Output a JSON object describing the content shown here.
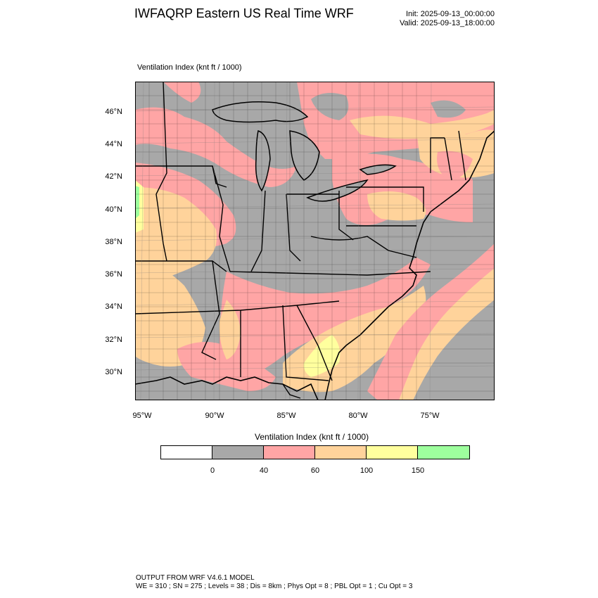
{
  "header": {
    "title": "IWFAQRP Eastern US Real Time WRF",
    "init": "Init: 2025-09-13_00:00:00",
    "valid": "Valid: 2025-09-13_18:00:00"
  },
  "map": {
    "field_label": "Ventilation Index   (knt ft / 1000)",
    "lat_labels": [
      "46°N",
      "44°N",
      "42°N",
      "40°N",
      "38°N",
      "36°N",
      "34°N",
      "32°N",
      "30°N"
    ],
    "lon_labels": [
      "95°W",
      "90°W",
      "85°W",
      "80°W",
      "75°W"
    ],
    "colors": {
      "lt0": "#ffffff",
      "v0_40": "#a8a8a8",
      "v40_60": "#ffa5a5",
      "v60_100": "#ffd39b",
      "v100_150": "#ffff9e",
      "v150p": "#9eff9e",
      "ocean": "#a8a8a8"
    }
  },
  "colorbar": {
    "title": "Ventilation Index   (knt ft / 1000)",
    "colors": [
      "#ffffff",
      "#a8a8a8",
      "#ffa5a5",
      "#ffd39b",
      "#ffff9e",
      "#9eff9e"
    ],
    "ticks": [
      "0",
      "40",
      "60",
      "100",
      "150"
    ]
  },
  "footer": {
    "line1": "OUTPUT FROM WRF V4.6.1 MODEL",
    "line2": "WE = 310 ; SN = 275 ; Levels = 38 ; Dis = 8km ; Phys Opt = 8 ; PBL Opt = 1 ; Cu Opt = 3"
  }
}
